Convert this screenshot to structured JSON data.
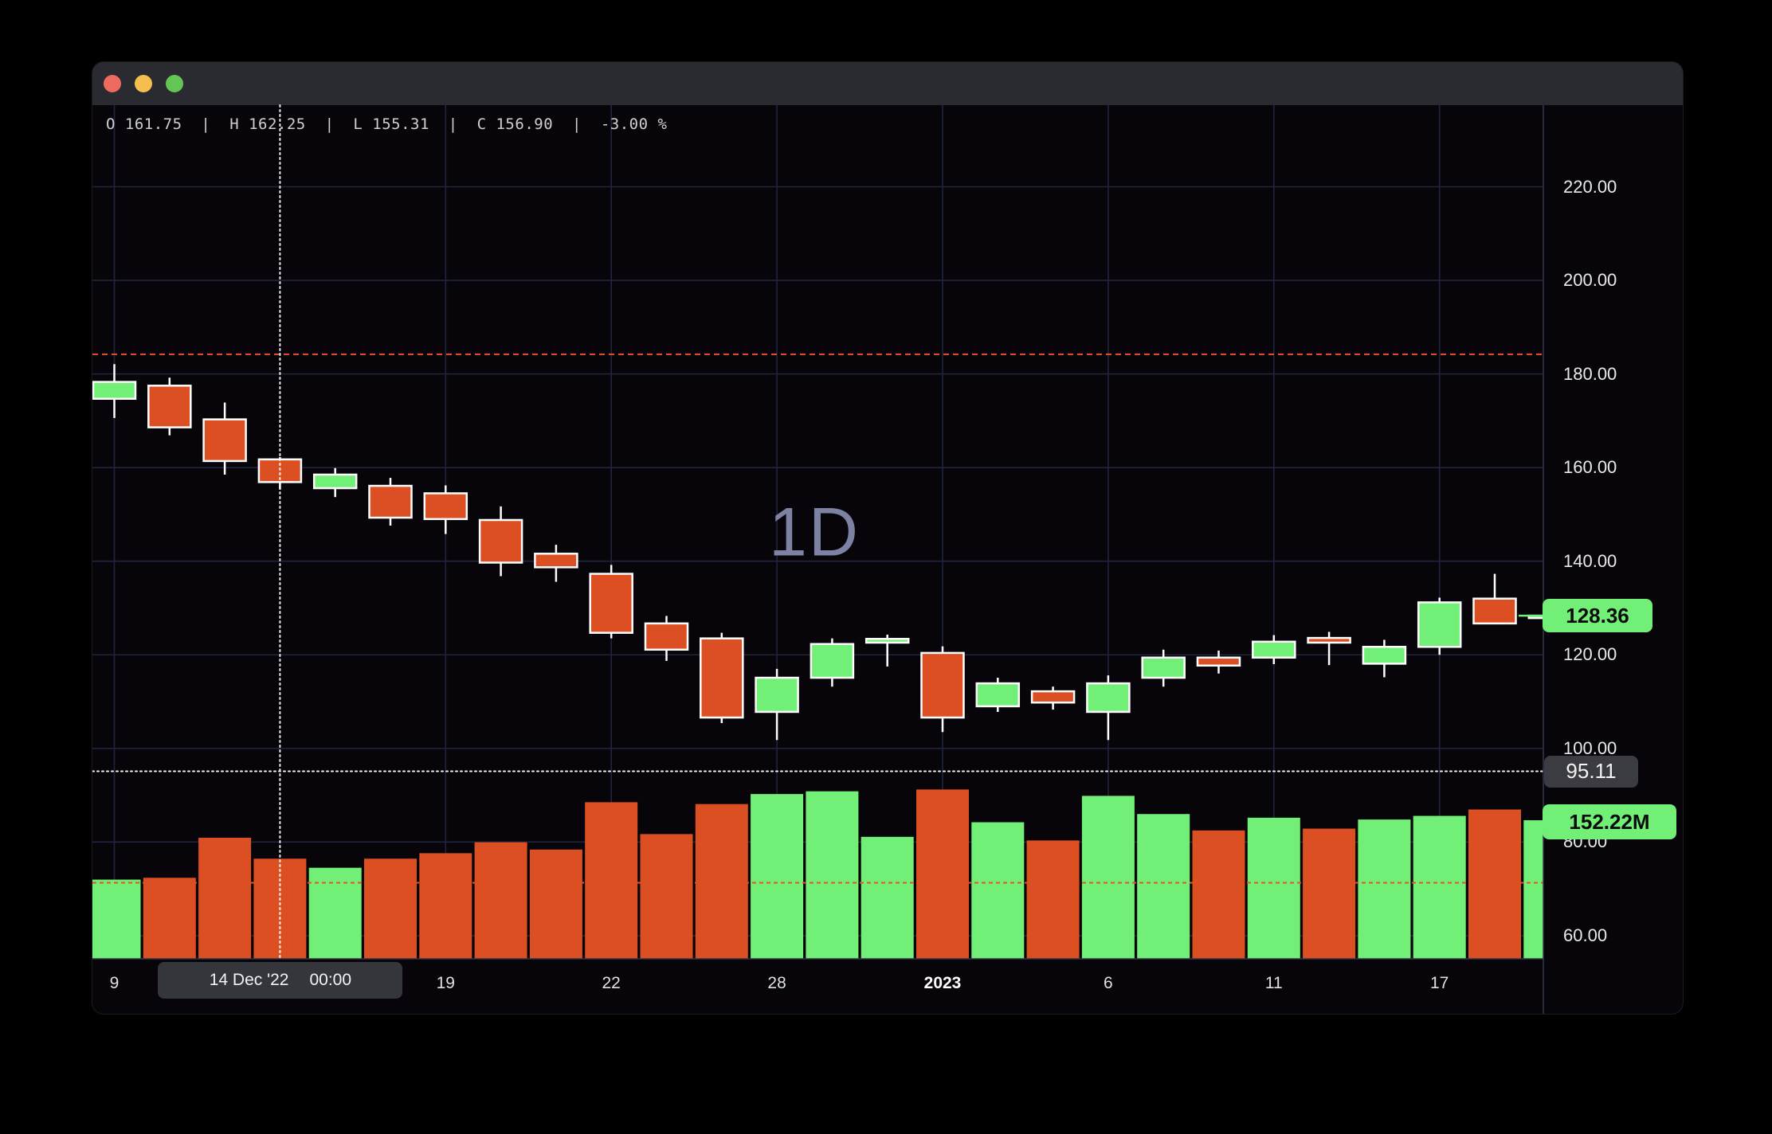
{
  "window": {
    "traffic_lights": [
      {
        "name": "close",
        "color": "#ee6a5f"
      },
      {
        "name": "minimize",
        "color": "#f5bf4f"
      },
      {
        "name": "zoom",
        "color": "#62c554"
      }
    ],
    "titlebar_color": "#2a2b31"
  },
  "legend": {
    "text": "O 161.75  |  H 162.25  |  L 155.31  |  C 156.90  |  -3.00 %"
  },
  "watermark": "1D",
  "colors": {
    "up": "#72ef76",
    "down": "#dc4f23",
    "wick": "#ffffff",
    "grid": "#20243c",
    "alert_line": "#e8512a",
    "crosshair": "#ffffff",
    "axis_border": "#343849",
    "price_badge_bg": "#72ef76",
    "crosshair_badge_bg": "#3b3c42",
    "time_badge_bg": "#35363b",
    "background": "#07050a"
  },
  "price_axis": {
    "ticks": [
      "220.00",
      "200.00",
      "180.00",
      "160.00",
      "140.00",
      "120.00",
      "100.00",
      "80.00",
      "60.00"
    ],
    "tick_values": [
      220,
      200,
      180,
      160,
      140,
      120,
      100,
      80,
      60
    ]
  },
  "time_axis": {
    "labels": [
      {
        "index": 0,
        "label": "9",
        "bold": false
      },
      {
        "index": 6,
        "label": "19",
        "bold": false
      },
      {
        "index": 9,
        "label": "22",
        "bold": false
      },
      {
        "index": 12,
        "label": "28",
        "bold": false
      },
      {
        "index": 15,
        "label": "2023",
        "bold": true
      },
      {
        "index": 18,
        "label": "6",
        "bold": false
      },
      {
        "index": 21,
        "label": "11",
        "bold": false
      },
      {
        "index": 24,
        "label": "17",
        "bold": false
      }
    ]
  },
  "badges": {
    "last_price": "128.36",
    "crosshair_price": "95.11",
    "last_volume": "152.22M",
    "crosshair_date": "14 Dec '22",
    "crosshair_time": "00:00"
  },
  "chart_data": {
    "type": "candlestick",
    "interval": "1D",
    "ylim": [
      50,
      230
    ],
    "legend_ohlc": {
      "open": 161.75,
      "high": 162.25,
      "low": 155.31,
      "close": 156.9,
      "change_pct": -3.0
    },
    "crosshair": {
      "candle_index": 3,
      "price": 95.11
    },
    "alert_line_price": 184.2,
    "volume_baseline_dashed_value_m": 83.5,
    "last_price": 128.36,
    "last_volume_m": 152.22,
    "candles": [
      {
        "date": "9 Dec '22",
        "o": 174.7,
        "h": 182.1,
        "l": 170.6,
        "c": 178.3,
        "vol_m": 87
      },
      {
        "date": "12 Dec '22",
        "o": 177.5,
        "h": 179.2,
        "l": 166.9,
        "c": 168.6,
        "vol_m": 89
      },
      {
        "date": "13 Dec '22",
        "o": 170.3,
        "h": 173.9,
        "l": 158.5,
        "c": 161.4,
        "vol_m": 133
      },
      {
        "date": "14 Dec '22",
        "o": 161.75,
        "h": 162.25,
        "l": 155.31,
        "c": 156.9,
        "vol_m": 110
      },
      {
        "date": "15 Dec '22",
        "o": 155.6,
        "h": 159.9,
        "l": 153.7,
        "c": 158.5,
        "vol_m": 100
      },
      {
        "date": "16 Dec '22",
        "o": 156.1,
        "h": 157.8,
        "l": 147.6,
        "c": 149.3,
        "vol_m": 110
      },
      {
        "date": "19 Dec '22",
        "o": 154.5,
        "h": 156.2,
        "l": 145.8,
        "c": 149.0,
        "vol_m": 116
      },
      {
        "date": "20 Dec '22",
        "o": 148.8,
        "h": 151.7,
        "l": 136.8,
        "c": 139.7,
        "vol_m": 128
      },
      {
        "date": "21 Dec '22",
        "o": 141.6,
        "h": 143.5,
        "l": 135.6,
        "c": 138.7,
        "vol_m": 120
      },
      {
        "date": "22 Dec '22",
        "o": 137.3,
        "h": 139.2,
        "l": 123.5,
        "c": 124.7,
        "vol_m": 172
      },
      {
        "date": "23 Dec '22",
        "o": 126.7,
        "h": 128.3,
        "l": 118.7,
        "c": 121.1,
        "vol_m": 137
      },
      {
        "date": "27 Dec '22",
        "o": 123.5,
        "h": 124.7,
        "l": 105.4,
        "c": 106.6,
        "vol_m": 170
      },
      {
        "date": "28 Dec '22",
        "o": 107.8,
        "h": 117.0,
        "l": 101.8,
        "c": 115.1,
        "vol_m": 181
      },
      {
        "date": "29 Dec '22",
        "o": 115.1,
        "h": 123.5,
        "l": 113.2,
        "c": 122.3,
        "vol_m": 184
      },
      {
        "date": "30 Dec '22",
        "o": 122.6,
        "h": 124.3,
        "l": 117.5,
        "c": 123.4,
        "vol_m": 134
      },
      {
        "date": "3 Jan '23",
        "o": 120.4,
        "h": 121.8,
        "l": 103.5,
        "c": 106.6,
        "vol_m": 186
      },
      {
        "date": "4 Jan '23",
        "o": 109.0,
        "h": 115.1,
        "l": 107.8,
        "c": 113.9,
        "vol_m": 150
      },
      {
        "date": "5 Jan '23",
        "o": 112.2,
        "h": 113.2,
        "l": 108.3,
        "c": 109.8,
        "vol_m": 130
      },
      {
        "date": "6 Jan '23",
        "o": 107.8,
        "h": 115.6,
        "l": 101.8,
        "c": 113.9,
        "vol_m": 179
      },
      {
        "date": "9 Jan '23",
        "o": 115.1,
        "h": 121.1,
        "l": 113.2,
        "c": 119.4,
        "vol_m": 159
      },
      {
        "date": "10 Jan '23",
        "o": 119.4,
        "h": 120.9,
        "l": 116.0,
        "c": 117.7,
        "vol_m": 141
      },
      {
        "date": "11 Jan '23",
        "o": 119.4,
        "h": 124.2,
        "l": 118.0,
        "c": 122.8,
        "vol_m": 155
      },
      {
        "date": "12 Jan '23",
        "o": 123.6,
        "h": 124.9,
        "l": 117.8,
        "c": 122.6,
        "vol_m": 143
      },
      {
        "date": "13 Jan '23",
        "o": 118.1,
        "h": 123.2,
        "l": 115.2,
        "c": 121.7,
        "vol_m": 153
      },
      {
        "date": "17 Jan '23",
        "o": 121.7,
        "h": 132.2,
        "l": 120.0,
        "c": 131.2,
        "vol_m": 157
      },
      {
        "date": "18 Jan '23",
        "o": 132.0,
        "h": 137.3,
        "l": 126.6,
        "c": 126.7,
        "vol_m": 164
      },
      {
        "date": "19 Jan '23",
        "o": 127.9,
        "h": 129.4,
        "l": 127.0,
        "c": 128.36,
        "vol_m": 152.22
      }
    ]
  }
}
